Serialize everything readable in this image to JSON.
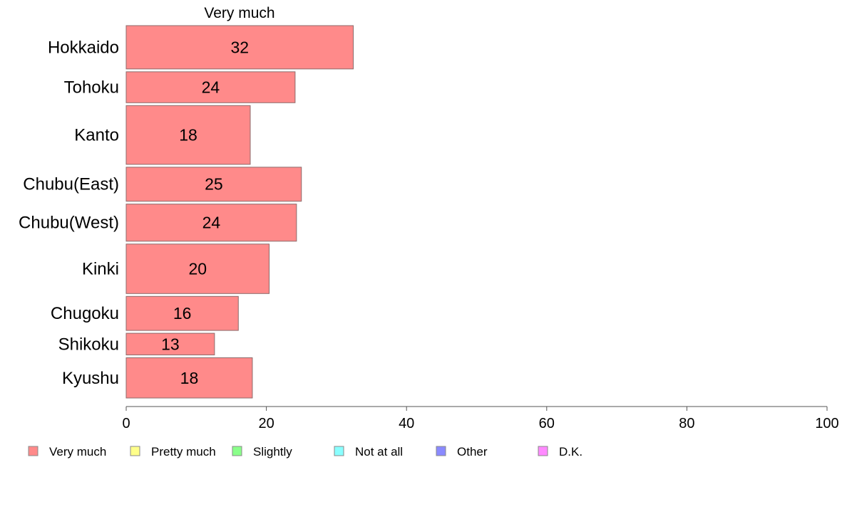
{
  "chart_data": {
    "type": "bar",
    "orientation": "horizontal",
    "series_header": "Very much",
    "categories": [
      "Hokkaido",
      "Tohoku",
      "Kanto",
      "Chubu(East)",
      "Chubu(West)",
      "Kinki",
      "Chugoku",
      "Shikoku",
      "Kyushu"
    ],
    "series": [
      {
        "name": "Very much",
        "values": [
          32,
          24,
          18,
          25,
          24,
          20,
          16,
          13,
          18
        ],
        "display_values": [
          32.4,
          24.1,
          17.7,
          25.0,
          24.3,
          20.4,
          16.0,
          12.6,
          18.0
        ],
        "color": "#ff8a8a"
      }
    ],
    "band_weights": [
      1.4,
      1.0,
      1.9,
      1.1,
      1.2,
      1.6,
      1.1,
      0.7,
      1.3
    ],
    "xlim": [
      0,
      100
    ],
    "xticks": [
      0,
      20,
      40,
      60,
      80,
      100
    ],
    "grid": false,
    "legend": {
      "placement": "bottom-left",
      "items": [
        {
          "label": "Very much",
          "color": "#ff8a8a"
        },
        {
          "label": "Pretty much",
          "color": "#ffff8a"
        },
        {
          "label": "Slightly",
          "color": "#8aff8a"
        },
        {
          "label": "Not at all",
          "color": "#8affff"
        },
        {
          "label": "Other",
          "color": "#8a8aff"
        },
        {
          "label": "D.K.",
          "color": "#ff8aff"
        }
      ]
    }
  }
}
